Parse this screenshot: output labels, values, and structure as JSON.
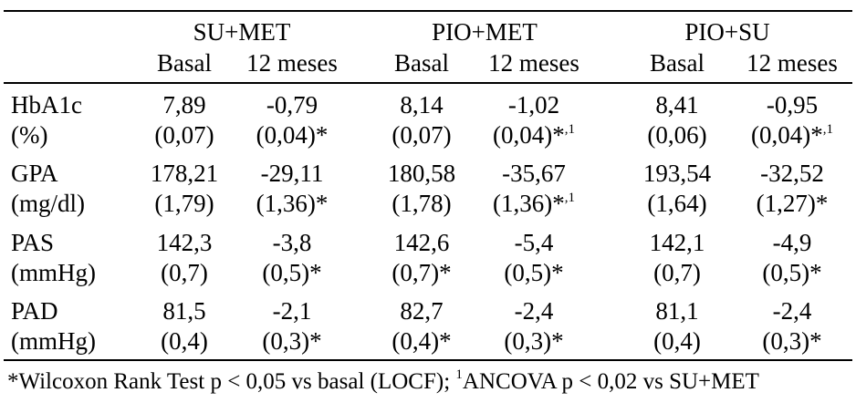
{
  "groups": [
    "SU+MET",
    "PIO+MET",
    "PIO+SU"
  ],
  "subheaders": {
    "su_met": [
      "Basal",
      "12 meses"
    ],
    "pio_met": [
      "Basal",
      "12 meses"
    ],
    "pio_su": [
      "Basal",
      "12 meses"
    ]
  },
  "rows": [
    {
      "label": "HbA1c",
      "unit": "(%)",
      "values": [
        "7,89",
        "-0,79",
        "8,14",
        "-1,02",
        "8,41",
        "-0,95"
      ],
      "errors": [
        "(0,07)",
        "(0,04)*",
        "(0,07)",
        "(0,04)*",
        "(0,06)",
        "(0,04)*"
      ],
      "error_marks": [
        "",
        "",
        "",
        ",1",
        "",
        ",1"
      ]
    },
    {
      "label": "GPA",
      "unit": "(mg/dl)",
      "values": [
        "178,21",
        "-29,11",
        "180,58",
        "-35,67",
        "193,54",
        "-32,52"
      ],
      "errors": [
        "(1,79)",
        "(1,36)*",
        "(1,78)",
        "(1,36)*",
        "(1,64)",
        "(1,27)*"
      ],
      "error_marks": [
        "",
        "",
        "",
        ",1",
        "",
        ""
      ]
    },
    {
      "label": "PAS",
      "unit": "(mmHg)",
      "values": [
        "142,3",
        "-3,8",
        "142,6",
        "-5,4",
        "142,1",
        "-4,9"
      ],
      "errors": [
        "(0,7)",
        "(0,5)*",
        "(0,7)*",
        "(0,5)*",
        "(0,7)",
        "(0,5)*"
      ],
      "error_marks": [
        "",
        "",
        "",
        "",
        "",
        ""
      ]
    },
    {
      "label": "PAD",
      "unit": "(mmHg)",
      "values": [
        "81,5",
        "-2,1",
        "82,7",
        "-2,4",
        "81,1",
        "-2,4"
      ],
      "errors": [
        "(0,4)",
        "(0,3)*",
        "(0,4)*",
        "(0,3)*",
        "(0,4)",
        "(0,3)*"
      ],
      "error_marks": [
        "",
        "",
        "",
        "",
        "",
        ""
      ]
    }
  ],
  "footnote": {
    "part1": "*Wilcoxon Rank Test p < 0,05 vs basal (LOCF); ",
    "sup": "1",
    "part2": "ANCOVA p < 0,02 vs SU+MET"
  }
}
